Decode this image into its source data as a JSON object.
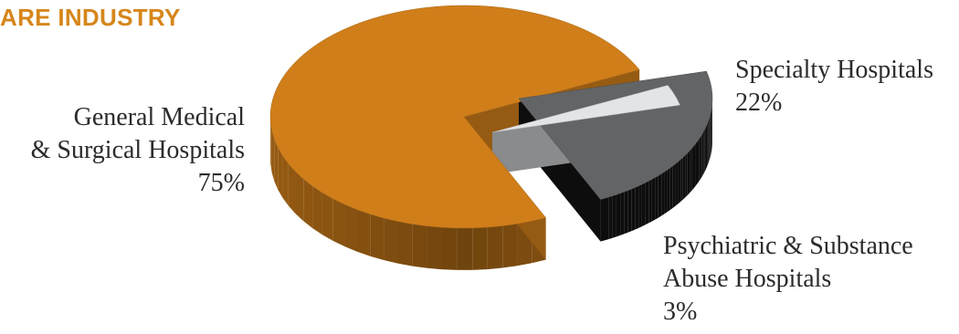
{
  "header": {
    "title": "ARE INDUSTRY"
  },
  "chart_data": {
    "type": "pie",
    "title": "",
    "slices": [
      {
        "name_lines": [
          "General Medical",
          "& Surgical Hospitals"
        ],
        "value": 75,
        "value_label": "75%",
        "color": "#d07e1a"
      },
      {
        "name_lines": [
          "Specialty Hospitals"
        ],
        "value": 22,
        "value_label": "22%",
        "color": "#636466"
      },
      {
        "name_lines": [
          "Psychiatric & Substance",
          "Abuse Hospitals"
        ],
        "value": 3,
        "value_label": "3%",
        "color": "#e3e4e5"
      }
    ],
    "exploded": [
      "Specialty Hospitals",
      "Psychiatric & Substance Abuse Hospitals"
    ],
    "style": "3d"
  }
}
